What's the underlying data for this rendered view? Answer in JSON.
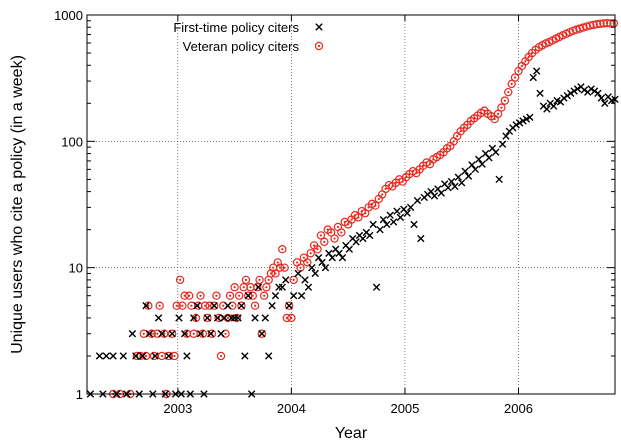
{
  "chart_data": {
    "type": "scatter",
    "title": "",
    "xlabel": "Year",
    "ylabel": "Unique users who cite a policy (in a week)",
    "x_ticks": [
      2003,
      2004,
      2005,
      2006
    ],
    "y_ticks": [
      1,
      10,
      100,
      1000
    ],
    "xlim": [
      2002.2,
      2006.85
    ],
    "ylim": [
      1,
      1000
    ],
    "y_scale": "log",
    "grid": true,
    "legend_position": "top-left",
    "series": [
      {
        "name": "First-time policy citers",
        "marker": "cross",
        "color": "#000000",
        "points": [
          [
            2002.23,
            1
          ],
          [
            2002.31,
            2
          ],
          [
            2002.34,
            1
          ],
          [
            2002.37,
            2
          ],
          [
            2002.43,
            2
          ],
          [
            2002.46,
            1
          ],
          [
            2002.52,
            2
          ],
          [
            2002.55,
            1
          ],
          [
            2002.6,
            3
          ],
          [
            2002.63,
            2
          ],
          [
            2002.66,
            1
          ],
          [
            2002.69,
            2
          ],
          [
            2002.72,
            5
          ],
          [
            2002.75,
            3
          ],
          [
            2002.78,
            1
          ],
          [
            2002.8,
            2
          ],
          [
            2002.83,
            4
          ],
          [
            2002.86,
            3
          ],
          [
            2002.89,
            1
          ],
          [
            2002.92,
            2
          ],
          [
            2002.95,
            3
          ],
          [
            2002.98,
            1
          ],
          [
            2003.01,
            4
          ],
          [
            2003.03,
            1
          ],
          [
            2003.06,
            3
          ],
          [
            2003.08,
            2
          ],
          [
            2003.11,
            1
          ],
          [
            2003.14,
            4
          ],
          [
            2003.17,
            5
          ],
          [
            2003.2,
            3
          ],
          [
            2003.23,
            1
          ],
          [
            2003.26,
            4
          ],
          [
            2003.29,
            3
          ],
          [
            2003.32,
            5
          ],
          [
            2003.35,
            4
          ],
          [
            2003.38,
            3
          ],
          [
            2003.41,
            4
          ],
          [
            2003.44,
            5
          ],
          [
            2003.47,
            4
          ],
          [
            2003.5,
            4
          ],
          [
            2003.53,
            4
          ],
          [
            2003.56,
            5
          ],
          [
            2003.59,
            2
          ],
          [
            2003.62,
            6
          ],
          [
            2003.65,
            1
          ],
          [
            2003.68,
            4
          ],
          [
            2003.71,
            7
          ],
          [
            2003.74,
            3
          ],
          [
            2003.77,
            4
          ],
          [
            2003.8,
            2
          ],
          [
            2003.83,
            5
          ],
          [
            2003.86,
            6
          ],
          [
            2003.89,
            7
          ],
          [
            2003.92,
            7
          ],
          [
            2003.95,
            8
          ],
          [
            2003.98,
            5
          ],
          [
            2004.02,
            6
          ],
          [
            2004.06,
            9
          ],
          [
            2004.09,
            6
          ],
          [
            2004.12,
            8
          ],
          [
            2004.15,
            7
          ],
          [
            2004.18,
            10
          ],
          [
            2004.21,
            9
          ],
          [
            2004.24,
            12
          ],
          [
            2004.27,
            11
          ],
          [
            2004.3,
            10
          ],
          [
            2004.33,
            13
          ],
          [
            2004.36,
            12
          ],
          [
            2004.39,
            14
          ],
          [
            2004.42,
            13
          ],
          [
            2004.45,
            12
          ],
          [
            2004.48,
            15
          ],
          [
            2004.51,
            14
          ],
          [
            2004.54,
            17
          ],
          [
            2004.57,
            16
          ],
          [
            2004.6,
            18
          ],
          [
            2004.63,
            17
          ],
          [
            2004.66,
            19
          ],
          [
            2004.69,
            18
          ],
          [
            2004.72,
            22
          ],
          [
            2004.75,
            7
          ],
          [
            2004.78,
            20
          ],
          [
            2004.81,
            24
          ],
          [
            2004.84,
            22
          ],
          [
            2004.87,
            26
          ],
          [
            2004.9,
            23
          ],
          [
            2004.93,
            28
          ],
          [
            2004.96,
            25
          ],
          [
            2004.99,
            29
          ],
          [
            2005.02,
            27
          ],
          [
            2005.05,
            30
          ],
          [
            2005.08,
            22
          ],
          [
            2005.11,
            34
          ],
          [
            2005.14,
            17
          ],
          [
            2005.17,
            36
          ],
          [
            2005.2,
            38
          ],
          [
            2005.23,
            40
          ],
          [
            2005.26,
            37
          ],
          [
            2005.29,
            42
          ],
          [
            2005.32,
            39
          ],
          [
            2005.35,
            46
          ],
          [
            2005.38,
            43
          ],
          [
            2005.41,
            48
          ],
          [
            2005.44,
            44
          ],
          [
            2005.47,
            52
          ],
          [
            2005.5,
            47
          ],
          [
            2005.53,
            58
          ],
          [
            2005.56,
            53
          ],
          [
            2005.59,
            65
          ],
          [
            2005.62,
            60
          ],
          [
            2005.65,
            72
          ],
          [
            2005.68,
            66
          ],
          [
            2005.71,
            80
          ],
          [
            2005.74,
            74
          ],
          [
            2005.77,
            88
          ],
          [
            2005.8,
            82
          ],
          [
            2005.83,
            50
          ],
          [
            2005.86,
            95
          ],
          [
            2005.89,
            110
          ],
          [
            2005.92,
            120
          ],
          [
            2005.95,
            128
          ],
          [
            2005.98,
            135
          ],
          [
            2006.01,
            140
          ],
          [
            2006.04,
            145
          ],
          [
            2006.07,
            150
          ],
          [
            2006.1,
            155
          ],
          [
            2006.13,
            320
          ],
          [
            2006.16,
            360
          ],
          [
            2006.19,
            240
          ],
          [
            2006.22,
            190
          ],
          [
            2006.25,
            180
          ],
          [
            2006.28,
            200
          ],
          [
            2006.31,
            190
          ],
          [
            2006.34,
            210
          ],
          [
            2006.37,
            205
          ],
          [
            2006.4,
            220
          ],
          [
            2006.43,
            230
          ],
          [
            2006.46,
            240
          ],
          [
            2006.49,
            250
          ],
          [
            2006.52,
            260
          ],
          [
            2006.55,
            270
          ],
          [
            2006.58,
            255
          ],
          [
            2006.61,
            245
          ],
          [
            2006.64,
            260
          ],
          [
            2006.67,
            250
          ],
          [
            2006.7,
            240
          ],
          [
            2006.73,
            220
          ],
          [
            2006.76,
            200
          ],
          [
            2006.79,
            225
          ],
          [
            2006.82,
            210
          ],
          [
            2006.85,
            215
          ]
        ]
      },
      {
        "name": "Veteran policy citers",
        "marker": "circle",
        "color": "#e8281e",
        "points": [
          [
            2002.43,
            1
          ],
          [
            2002.49,
            1
          ],
          [
            2002.58,
            1
          ],
          [
            2002.64,
            2
          ],
          [
            2002.67,
            2
          ],
          [
            2002.7,
            3
          ],
          [
            2002.72,
            2
          ],
          [
            2002.74,
            5
          ],
          [
            2002.77,
            3
          ],
          [
            2002.79,
            2
          ],
          [
            2002.82,
            3
          ],
          [
            2002.84,
            5
          ],
          [
            2002.86,
            2
          ],
          [
            2002.88,
            3
          ],
          [
            2002.9,
            1
          ],
          [
            2002.92,
            2
          ],
          [
            2002.95,
            3
          ],
          [
            2002.97,
            2
          ],
          [
            2002.99,
            5
          ],
          [
            2003.02,
            8
          ],
          [
            2003.04,
            5
          ],
          [
            2003.06,
            6
          ],
          [
            2003.08,
            3
          ],
          [
            2003.1,
            6
          ],
          [
            2003.12,
            5
          ],
          [
            2003.14,
            3
          ],
          [
            2003.16,
            4
          ],
          [
            2003.18,
            5
          ],
          [
            2003.2,
            6
          ],
          [
            2003.22,
            3
          ],
          [
            2003.24,
            5
          ],
          [
            2003.26,
            4
          ],
          [
            2003.28,
            5
          ],
          [
            2003.3,
            3
          ],
          [
            2003.32,
            5
          ],
          [
            2003.34,
            6
          ],
          [
            2003.36,
            4
          ],
          [
            2003.38,
            2
          ],
          [
            2003.4,
            5
          ],
          [
            2003.42,
            3
          ],
          [
            2003.44,
            4
          ],
          [
            2003.46,
            6
          ],
          [
            2003.48,
            5
          ],
          [
            2003.5,
            7
          ],
          [
            2003.52,
            4
          ],
          [
            2003.54,
            6
          ],
          [
            2003.56,
            5
          ],
          [
            2003.58,
            7
          ],
          [
            2003.6,
            8
          ],
          [
            2003.62,
            6
          ],
          [
            2003.64,
            7
          ],
          [
            2003.66,
            6
          ],
          [
            2003.68,
            5
          ],
          [
            2003.7,
            7
          ],
          [
            2003.72,
            8
          ],
          [
            2003.74,
            3
          ],
          [
            2003.76,
            6
          ],
          [
            2003.78,
            7
          ],
          [
            2003.8,
            8
          ],
          [
            2003.82,
            9
          ],
          [
            2003.84,
            10
          ],
          [
            2003.86,
            9
          ],
          [
            2003.88,
            11
          ],
          [
            2003.9,
            10
          ],
          [
            2003.92,
            14
          ],
          [
            2003.94,
            10
          ],
          [
            2003.96,
            4
          ],
          [
            2003.98,
            5
          ],
          [
            2004.0,
            4
          ],
          [
            2004.02,
            8
          ],
          [
            2004.05,
            11
          ],
          [
            2004.08,
            10
          ],
          [
            2004.11,
            12
          ],
          [
            2004.14,
            11
          ],
          [
            2004.17,
            13
          ],
          [
            2004.2,
            15
          ],
          [
            2004.23,
            14
          ],
          [
            2004.26,
            18
          ],
          [
            2004.29,
            16
          ],
          [
            2004.32,
            20
          ],
          [
            2004.35,
            19
          ],
          [
            2004.38,
            17
          ],
          [
            2004.41,
            21
          ],
          [
            2004.44,
            19
          ],
          [
            2004.47,
            23
          ],
          [
            2004.5,
            22
          ],
          [
            2004.53,
            24
          ],
          [
            2004.56,
            26
          ],
          [
            2004.59,
            25
          ],
          [
            2004.62,
            28
          ],
          [
            2004.65,
            27
          ],
          [
            2004.68,
            30
          ],
          [
            2004.71,
            32
          ],
          [
            2004.74,
            31
          ],
          [
            2004.77,
            35
          ],
          [
            2004.8,
            38
          ],
          [
            2004.83,
            42
          ],
          [
            2004.86,
            45
          ],
          [
            2004.89,
            44
          ],
          [
            2004.92,
            47
          ],
          [
            2004.95,
            50
          ],
          [
            2004.98,
            48
          ],
          [
            2005.01,
            52
          ],
          [
            2005.04,
            55
          ],
          [
            2005.07,
            58
          ],
          [
            2005.1,
            56
          ],
          [
            2005.13,
            60
          ],
          [
            2005.16,
            64
          ],
          [
            2005.19,
            68
          ],
          [
            2005.22,
            66
          ],
          [
            2005.25,
            72
          ],
          [
            2005.28,
            75
          ],
          [
            2005.31,
            78
          ],
          [
            2005.34,
            82
          ],
          [
            2005.37,
            88
          ],
          [
            2005.4,
            92
          ],
          [
            2005.43,
            100
          ],
          [
            2005.46,
            110
          ],
          [
            2005.49,
            120
          ],
          [
            2005.52,
            128
          ],
          [
            2005.55,
            135
          ],
          [
            2005.58,
            145
          ],
          [
            2005.61,
            152
          ],
          [
            2005.64,
            160
          ],
          [
            2005.67,
            168
          ],
          [
            2005.7,
            175
          ],
          [
            2005.73,
            165
          ],
          [
            2005.76,
            158
          ],
          [
            2005.79,
            150
          ],
          [
            2005.82,
            165
          ],
          [
            2005.85,
            185
          ],
          [
            2005.88,
            210
          ],
          [
            2005.91,
            245
          ],
          [
            2005.94,
            285
          ],
          [
            2005.97,
            320
          ],
          [
            2006.0,
            360
          ],
          [
            2006.03,
            395
          ],
          [
            2006.06,
            430
          ],
          [
            2006.09,
            465
          ],
          [
            2006.12,
            500
          ],
          [
            2006.15,
            530
          ],
          [
            2006.18,
            555
          ],
          [
            2006.21,
            575
          ],
          [
            2006.24,
            595
          ],
          [
            2006.27,
            610
          ],
          [
            2006.3,
            630
          ],
          [
            2006.33,
            650
          ],
          [
            2006.36,
            670
          ],
          [
            2006.39,
            690
          ],
          [
            2006.42,
            710
          ],
          [
            2006.45,
            730
          ],
          [
            2006.48,
            750
          ],
          [
            2006.51,
            765
          ],
          [
            2006.54,
            780
          ],
          [
            2006.57,
            795
          ],
          [
            2006.6,
            810
          ],
          [
            2006.63,
            825
          ],
          [
            2006.66,
            835
          ],
          [
            2006.69,
            845
          ],
          [
            2006.72,
            852
          ],
          [
            2006.75,
            858
          ],
          [
            2006.78,
            862
          ],
          [
            2006.81,
            858
          ],
          [
            2006.84,
            860
          ]
        ]
      }
    ]
  }
}
